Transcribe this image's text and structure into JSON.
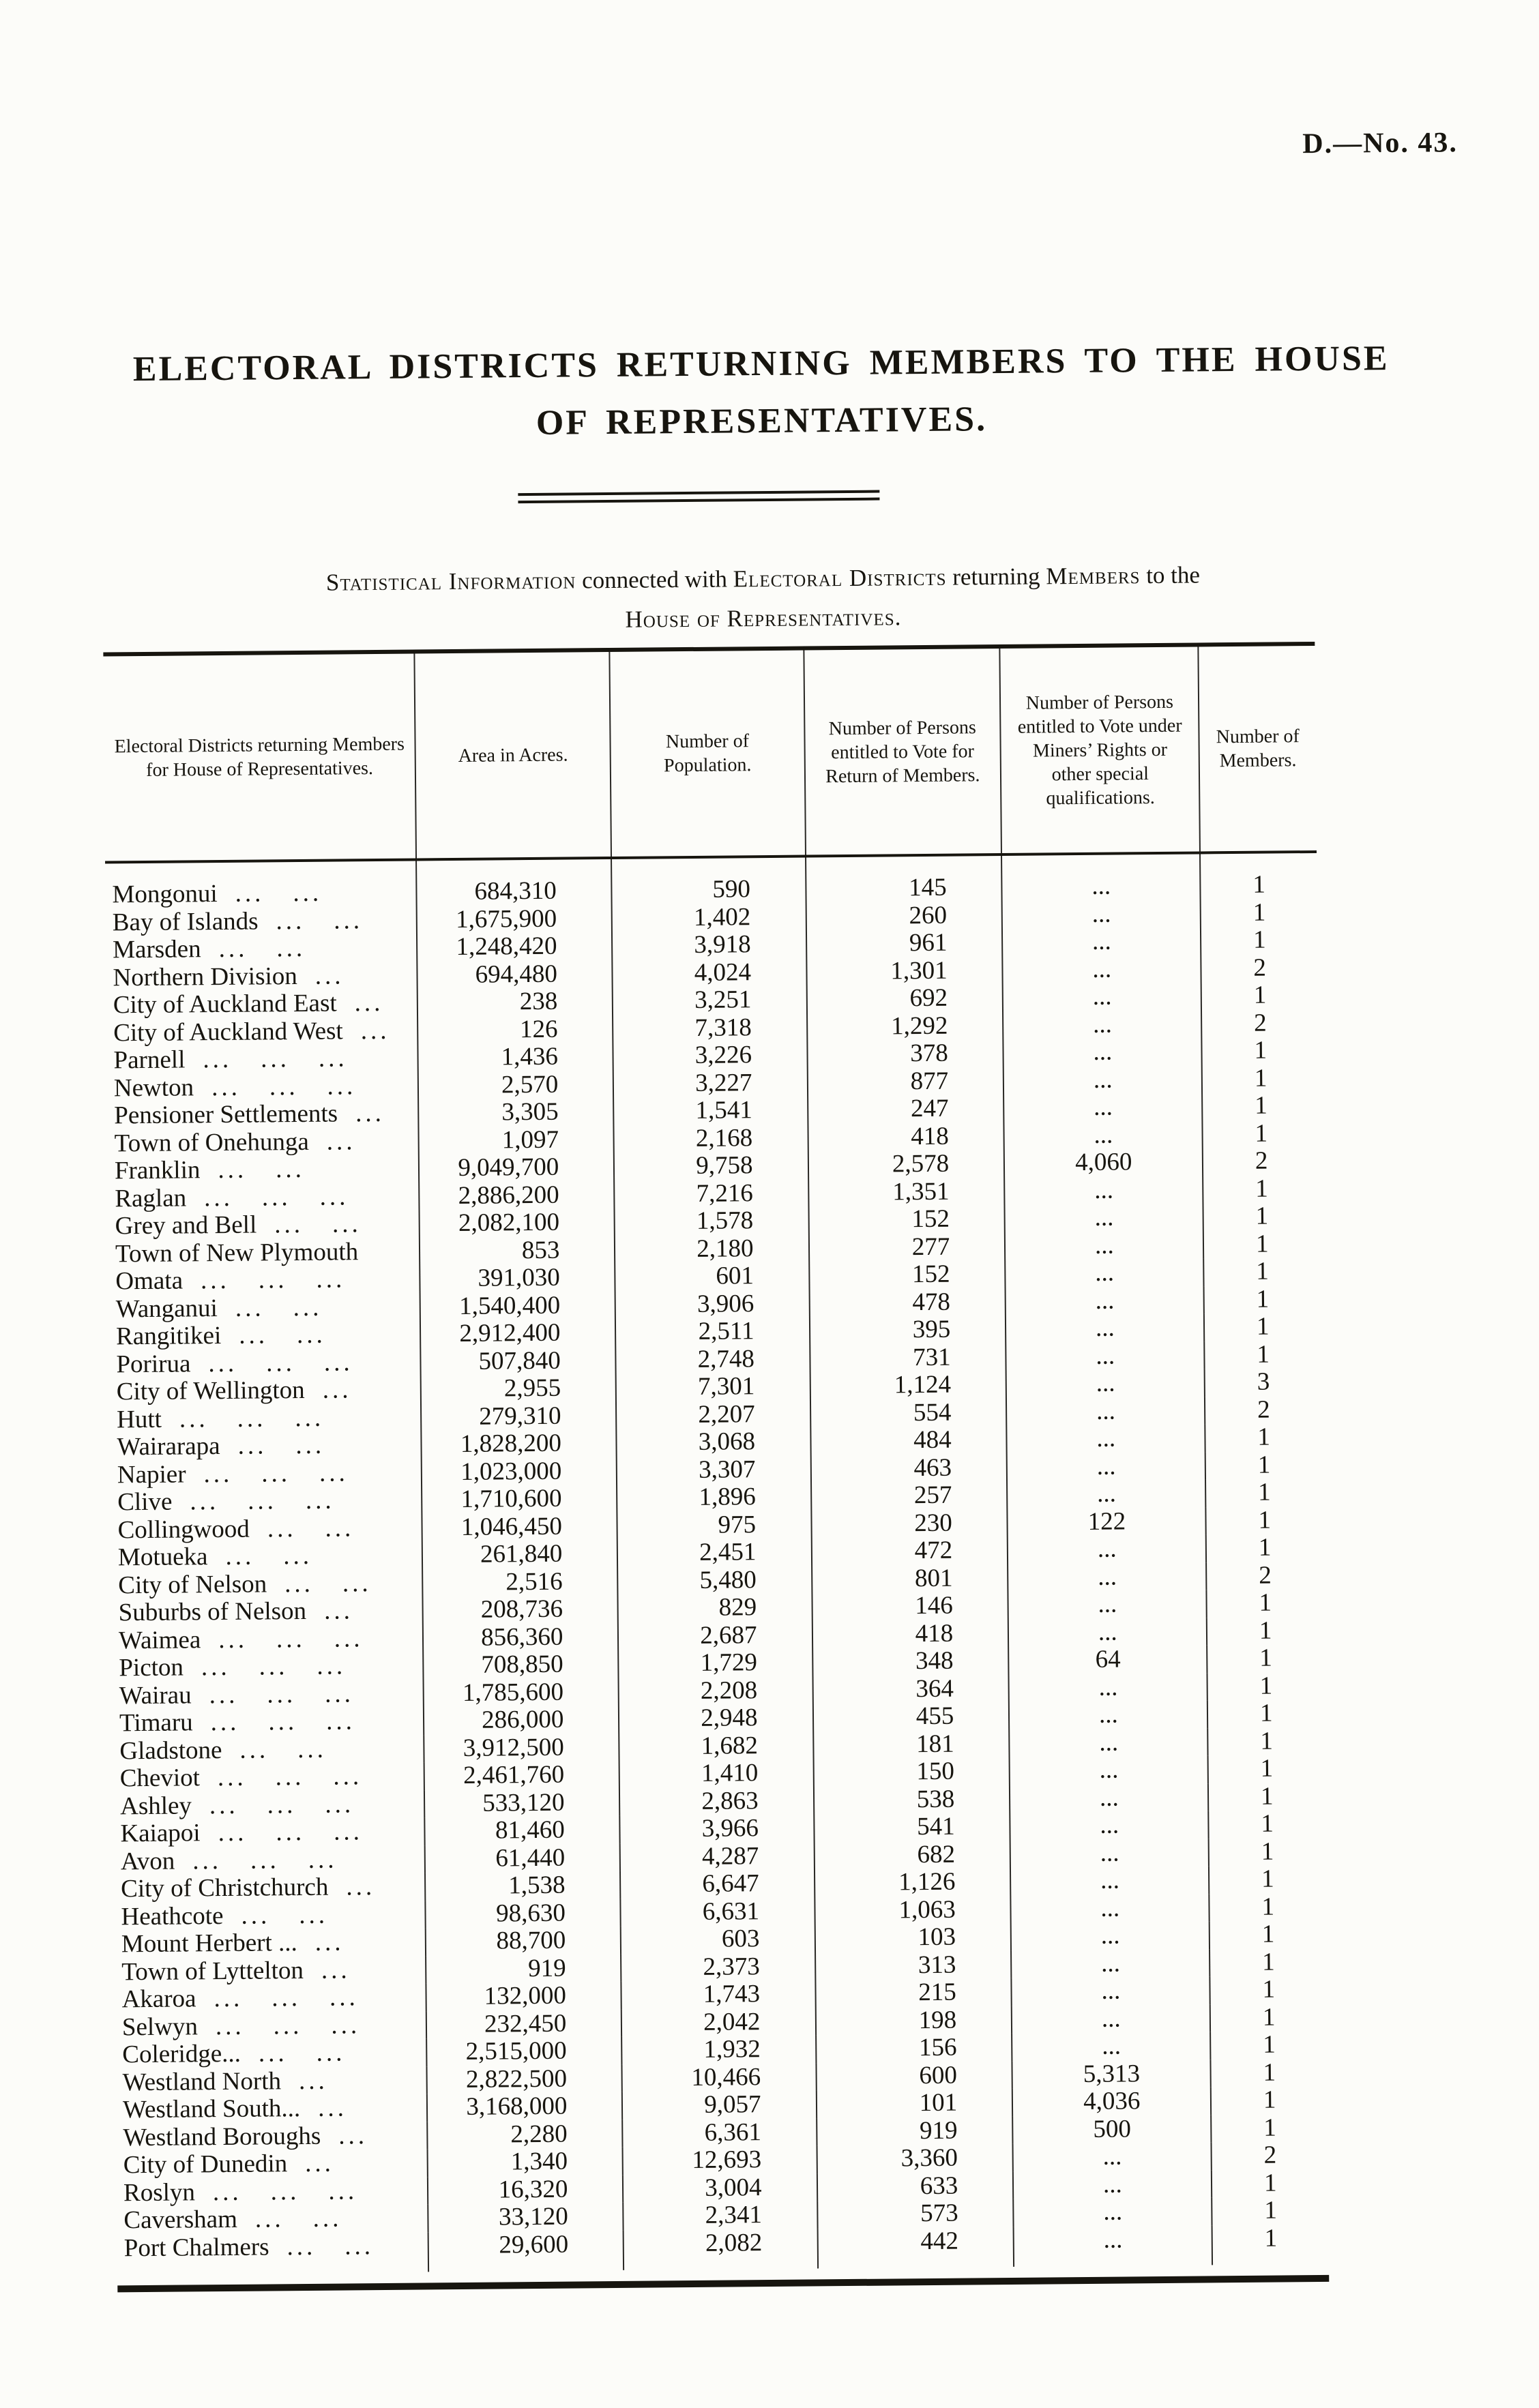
{
  "ink_color": "#17150f",
  "paper_color": "#fcfcf9",
  "page": {
    "doc_ref": "D.—No. 43.",
    "title_line1": "ELECTORAL DISTRICTS RETURNING MEMBERS TO THE HOUSE",
    "title_line2": "OF REPRESENTATIVES.",
    "subtitle_lines": [
      [
        {
          "t": "Statistical Information",
          "sc": true
        },
        {
          "t": " connected with ",
          "sc": false
        },
        {
          "t": "Electoral Districts",
          "sc": true
        },
        {
          "t": " returning ",
          "sc": false
        },
        {
          "t": "Members",
          "sc": true
        },
        {
          "t": " to the",
          "sc": false
        }
      ],
      [
        {
          "t": "House of Representatives.",
          "sc": true
        }
      ]
    ]
  },
  "table": {
    "headers": [
      "Electoral Districts returning Members for House of Representatives.",
      "Area in Acres.",
      "Number of Population.",
      "Number of Persons entitled to Vote for Return of Members.",
      "Number of Persons entitled to Vote under Miners’ Rights or other special qualifications.",
      "Number of Members."
    ],
    "rows": [
      {
        "district": "Mongonui",
        "leader": "... ...",
        "area": "684,310",
        "population": "590",
        "voters": "145",
        "miners": "...",
        "members": "1"
      },
      {
        "district": "Bay of Islands",
        "leader": "... ...",
        "area": "1,675,900",
        "population": "1,402",
        "voters": "260",
        "miners": "...",
        "members": "1"
      },
      {
        "district": "Marsden",
        "leader": "... ...",
        "area": "1,248,420",
        "population": "3,918",
        "voters": "961",
        "miners": "...",
        "members": "1"
      },
      {
        "district": "Northern Division",
        "leader": "...",
        "area": "694,480",
        "population": "4,024",
        "voters": "1,301",
        "miners": "...",
        "members": "2"
      },
      {
        "district": "City of Auckland East",
        "leader": "...",
        "area": "238",
        "population": "3,251",
        "voters": "692",
        "miners": "...",
        "members": "1"
      },
      {
        "district": "City of Auckland West",
        "leader": "...",
        "area": "126",
        "population": "7,318",
        "voters": "1,292",
        "miners": "...",
        "members": "2"
      },
      {
        "district": "Parnell",
        "leader": "... ... ...",
        "area": "1,436",
        "population": "3,226",
        "voters": "378",
        "miners": "...",
        "members": "1"
      },
      {
        "district": "Newton",
        "leader": "... ... ...",
        "area": "2,570",
        "population": "3,227",
        "voters": "877",
        "miners": "...",
        "members": "1"
      },
      {
        "district": "Pensioner Settlements",
        "leader": "...",
        "area": "3,305",
        "population": "1,541",
        "voters": "247",
        "miners": "...",
        "members": "1"
      },
      {
        "district": "Town of Onehunga",
        "leader": "...",
        "area": "1,097",
        "population": "2,168",
        "voters": "418",
        "miners": "...",
        "members": "1"
      },
      {
        "district": "Franklin",
        "leader": "... ...",
        "area": "9,049,700",
        "population": "9,758",
        "voters": "2,578",
        "miners": "4,060",
        "members": "2"
      },
      {
        "district": "Raglan",
        "leader": "... ... ...",
        "area": "2,886,200",
        "population": "7,216",
        "voters": "1,351",
        "miners": "...",
        "members": "1"
      },
      {
        "district": "Grey and Bell",
        "leader": "... ...",
        "area": "2,082,100",
        "population": "1,578",
        "voters": "152",
        "miners": "...",
        "members": "1"
      },
      {
        "district": "Town of New Plymouth",
        "leader": "",
        "area": "853",
        "population": "2,180",
        "voters": "277",
        "miners": "...",
        "members": "1"
      },
      {
        "district": "Omata",
        "leader": "... ... ...",
        "area": "391,030",
        "population": "601",
        "voters": "152",
        "miners": "...",
        "members": "1"
      },
      {
        "district": "Wanganui",
        "leader": "... ...",
        "area": "1,540,400",
        "population": "3,906",
        "voters": "478",
        "miners": "...",
        "members": "1"
      },
      {
        "district": "Rangitikei",
        "leader": "... ...",
        "area": "2,912,400",
        "population": "2,511",
        "voters": "395",
        "miners": "...",
        "members": "1"
      },
      {
        "district": "Porirua",
        "leader": "... ... ...",
        "area": "507,840",
        "population": "2,748",
        "voters": "731",
        "miners": "...",
        "members": "1"
      },
      {
        "district": "City of Wellington",
        "leader": "...",
        "area": "2,955",
        "population": "7,301",
        "voters": "1,124",
        "miners": "...",
        "members": "3"
      },
      {
        "district": "Hutt",
        "leader": "... ... ...",
        "area": "279,310",
        "population": "2,207",
        "voters": "554",
        "miners": "...",
        "members": "2"
      },
      {
        "district": "Wairarapa",
        "leader": "... ...",
        "area": "1,828,200",
        "population": "3,068",
        "voters": "484",
        "miners": "...",
        "members": "1"
      },
      {
        "district": "Napier",
        "leader": "... ... ...",
        "area": "1,023,000",
        "population": "3,307",
        "voters": "463",
        "miners": "...",
        "members": "1"
      },
      {
        "district": "Clive",
        "leader": "... ... ...",
        "area": "1,710,600",
        "population": "1,896",
        "voters": "257",
        "miners": "...",
        "members": "1"
      },
      {
        "district": "Collingwood",
        "leader": "... ...",
        "area": "1,046,450",
        "population": "975",
        "voters": "230",
        "miners": "122",
        "members": "1"
      },
      {
        "district": "Motueka",
        "leader": "... ...",
        "area": "261,840",
        "population": "2,451",
        "voters": "472",
        "miners": "...",
        "members": "1"
      },
      {
        "district": "City of Nelson",
        "leader": "... ...",
        "area": "2,516",
        "population": "5,480",
        "voters": "801",
        "miners": "...",
        "members": "2"
      },
      {
        "district": "Suburbs of Nelson",
        "leader": "...",
        "area": "208,736",
        "population": "829",
        "voters": "146",
        "miners": "...",
        "members": "1"
      },
      {
        "district": "Waimea",
        "leader": "... ... ...",
        "area": "856,360",
        "population": "2,687",
        "voters": "418",
        "miners": "...",
        "members": "1"
      },
      {
        "district": "Picton",
        "leader": "... ... ...",
        "area": "708,850",
        "population": "1,729",
        "voters": "348",
        "miners": "64",
        "members": "1"
      },
      {
        "district": "Wairau",
        "leader": "... ... ...",
        "area": "1,785,600",
        "population": "2,208",
        "voters": "364",
        "miners": "...",
        "members": "1"
      },
      {
        "district": "Timaru",
        "leader": "... ... ...",
        "area": "286,000",
        "population": "2,948",
        "voters": "455",
        "miners": "...",
        "members": "1"
      },
      {
        "district": "Gladstone",
        "leader": "... ...",
        "area": "3,912,500",
        "population": "1,682",
        "voters": "181",
        "miners": "...",
        "members": "1"
      },
      {
        "district": "Cheviot",
        "leader": "... ... ...",
        "area": "2,461,760",
        "population": "1,410",
        "voters": "150",
        "miners": "...",
        "members": "1"
      },
      {
        "district": "Ashley",
        "leader": "... ... ...",
        "area": "533,120",
        "population": "2,863",
        "voters": "538",
        "miners": "...",
        "members": "1"
      },
      {
        "district": "Kaiapoi",
        "leader": "... ... ...",
        "area": "81,460",
        "population": "3,966",
        "voters": "541",
        "miners": "...",
        "members": "1"
      },
      {
        "district": "Avon",
        "leader": "... ... ...",
        "area": "61,440",
        "population": "4,287",
        "voters": "682",
        "miners": "...",
        "members": "1"
      },
      {
        "district": "City of Christchurch",
        "leader": "...",
        "area": "1,538",
        "population": "6,647",
        "voters": "1,126",
        "miners": "...",
        "members": "1"
      },
      {
        "district": "Heathcote",
        "leader": "... ...",
        "area": "98,630",
        "population": "6,631",
        "voters": "1,063",
        "miners": "...",
        "members": "1"
      },
      {
        "district": "Mount Herbert ...",
        "leader": "...",
        "area": "88,700",
        "population": "603",
        "voters": "103",
        "miners": "...",
        "members": "1"
      },
      {
        "district": "Town of Lyttelton",
        "leader": "...",
        "area": "919",
        "population": "2,373",
        "voters": "313",
        "miners": "...",
        "members": "1"
      },
      {
        "district": "Akaroa",
        "leader": "... ... ...",
        "area": "132,000",
        "population": "1,743",
        "voters": "215",
        "miners": "...",
        "members": "1"
      },
      {
        "district": "Selwyn",
        "leader": "... ... ...",
        "area": "232,450",
        "population": "2,042",
        "voters": "198",
        "miners": "...",
        "members": "1"
      },
      {
        "district": "Coleridge...",
        "leader": "... ...",
        "area": "2,515,000",
        "population": "1,932",
        "voters": "156",
        "miners": "...",
        "members": "1"
      },
      {
        "district": "Westland North",
        "leader": "...",
        "area": "2,822,500",
        "population": "10,466",
        "voters": "600",
        "miners": "5,313",
        "members": "1"
      },
      {
        "district": "Westland South...",
        "leader": "...",
        "area": "3,168,000",
        "population": "9,057",
        "voters": "101",
        "miners": "4,036",
        "members": "1"
      },
      {
        "district": "Westland Boroughs",
        "leader": "...",
        "area": "2,280",
        "population": "6,361",
        "voters": "919",
        "miners": "500",
        "members": "1"
      },
      {
        "district": "City of Dunedin",
        "leader": "...",
        "area": "1,340",
        "population": "12,693",
        "voters": "3,360",
        "miners": "...",
        "members": "2"
      },
      {
        "district": "Roslyn",
        "leader": "... ... ...",
        "area": "16,320",
        "population": "3,004",
        "voters": "633",
        "miners": "...",
        "members": "1"
      },
      {
        "district": "Caversham",
        "leader": "... ...",
        "area": "33,120",
        "population": "2,341",
        "voters": "573",
        "miners": "...",
        "members": "1"
      },
      {
        "district": "Port Chalmers",
        "leader": "... ...",
        "area": "29,600",
        "population": "2,082",
        "voters": "442",
        "miners": "...",
        "members": "1"
      }
    ]
  }
}
